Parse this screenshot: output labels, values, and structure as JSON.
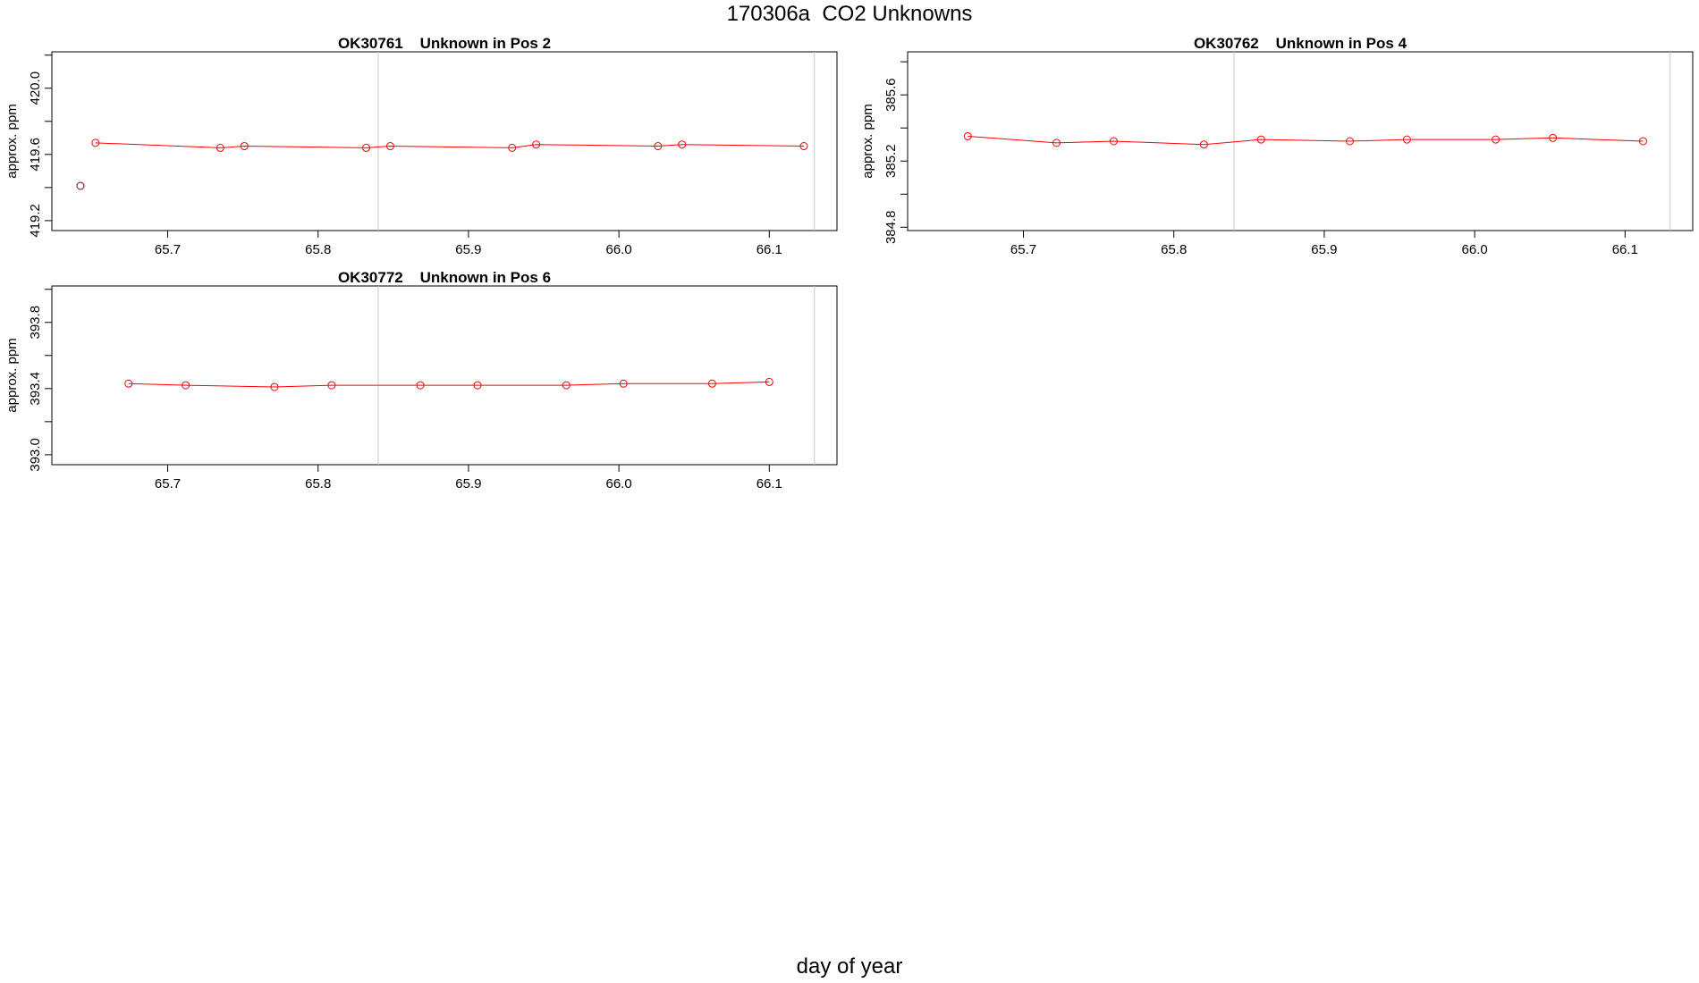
{
  "figure": {
    "title": "170306a  CO2 Unknowns",
    "xlabel": "day of year"
  },
  "chart_data": [
    {
      "type": "scatter",
      "title": "OK30761    Unknown in Pos 2",
      "xlabel": "",
      "ylabel": "approx. ppm",
      "xlim": [
        65.623,
        66.145
      ],
      "ylim": [
        419.14,
        420.22
      ],
      "xticks": [
        "65.7",
        "65.8",
        "65.9",
        "66.0",
        "66.1"
      ],
      "yticks": [
        "419.2",
        "419.6",
        "420.0"
      ],
      "vlines": [
        65.84,
        66.13
      ],
      "grid": false,
      "series": [
        {
          "color": "#ff0000",
          "connected": true,
          "x": [
            65.652,
            65.735,
            65.751,
            65.832,
            65.848,
            65.929,
            65.945,
            66.026,
            66.042,
            66.123
          ],
          "y": [
            419.67,
            419.64,
            419.65,
            419.64,
            419.65,
            419.64,
            419.66,
            419.65,
            419.66,
            419.65
          ]
        },
        {
          "color": "#800000",
          "connected": false,
          "x": [
            65.642
          ],
          "y": [
            419.41
          ]
        }
      ]
    },
    {
      "type": "scatter",
      "title": "OK30762    Unknown in Pos 4",
      "xlabel": "",
      "ylabel": "approx. ppm",
      "xlim": [
        65.623,
        66.145
      ],
      "ylim": [
        384.78,
        385.86
      ],
      "xticks": [
        "65.7",
        "65.8",
        "65.9",
        "66.0",
        "66.1"
      ],
      "yticks": [
        "384.8",
        "385.2",
        "385.6"
      ],
      "vlines": [
        65.84,
        66.13
      ],
      "grid": false,
      "series": [
        {
          "color": "#ff0000",
          "connected": true,
          "x": [
            65.663,
            65.722,
            65.76,
            65.82,
            65.858,
            65.917,
            65.955,
            66.014,
            66.052,
            66.112
          ],
          "y": [
            385.35,
            385.31,
            385.32,
            385.3,
            385.33,
            385.32,
            385.33,
            385.33,
            385.34,
            385.32
          ]
        }
      ]
    },
    {
      "type": "scatter",
      "title": "OK30772    Unknown in Pos 6",
      "xlabel": "",
      "ylabel": "approx. ppm",
      "xlim": [
        65.623,
        66.145
      ],
      "ylim": [
        392.94,
        394.02
      ],
      "xticks": [
        "65.7",
        "65.8",
        "65.9",
        "66.0",
        "66.1"
      ],
      "yticks": [
        "393.0",
        "393.4",
        "393.8"
      ],
      "vlines": [
        65.84,
        66.13
      ],
      "grid": false,
      "series": [
        {
          "color": "#ff0000",
          "connected": true,
          "x": [
            65.674,
            65.712,
            65.771,
            65.809,
            65.868,
            65.906,
            65.965,
            66.003,
            66.062,
            66.1
          ],
          "y": [
            393.43,
            393.42,
            393.41,
            393.42,
            393.42,
            393.42,
            393.42,
            393.43,
            393.43,
            393.44
          ]
        }
      ]
    }
  ]
}
